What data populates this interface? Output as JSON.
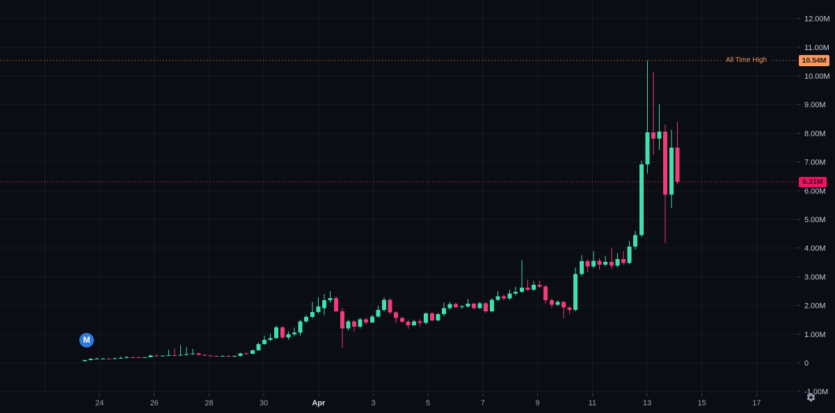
{
  "window": {
    "title": "Token market cap candlestick chart"
  },
  "colors": {
    "background": "#0a0d14",
    "grid": "rgba(160,175,205,0.08)",
    "up": "#3fe0ad",
    "down": "#f23b77",
    "axis_text": "#c4c9d4",
    "axis_text_dim": "#9aa0ac",
    "axis_text_bold": "#dde1e8",
    "tick": "#3a4152",
    "ath_line": "#b06f3f",
    "ath_text": "#f79a5e",
    "ath_badge_bg": "#f89a62",
    "price_line": "#e81d64",
    "price_badge_bg": "#f0135f",
    "logo_bg": "#2e7cd8"
  },
  "marker": {
    "letter": "M"
  },
  "axis_settings_icon": "gear-icon",
  "chart_data": {
    "type": "candlestick",
    "title": "",
    "series_name": "M",
    "unit": "M",
    "ylim": [
      -1,
      12
    ],
    "grid": true,
    "x_axis": {
      "labels": [
        "24",
        "26",
        "28",
        "30",
        "Apr",
        "3",
        "5",
        "7",
        "9",
        "11",
        "13",
        "15",
        "17"
      ],
      "emphasized": [
        "Apr"
      ]
    },
    "y_axis": {
      "labels": [
        "12.00M",
        "11.00M",
        "10.00M",
        "9.00M",
        "8.00M",
        "7.00M",
        "6.00M",
        "5.00M",
        "4.00M",
        "3.00M",
        "2.00M",
        "1.00M",
        "0",
        "-1.00M"
      ],
      "values": [
        12,
        11,
        10,
        9,
        8,
        7,
        6,
        5,
        4,
        3,
        2,
        1,
        0,
        -1
      ]
    },
    "all_time_high": {
      "label": "All Time High",
      "value": "10.54M",
      "price": 10.54
    },
    "last_price": {
      "value": "6.31M",
      "price": 6.31
    },
    "candles_format": [
      "open",
      "high",
      "low",
      "close"
    ],
    "candles": [
      [
        0.06,
        0.11,
        0.05,
        0.1
      ],
      [
        0.1,
        0.16,
        0.09,
        0.14
      ],
      [
        0.14,
        0.18,
        0.12,
        0.15
      ],
      [
        0.15,
        0.17,
        0.13,
        0.15
      ],
      [
        0.15,
        0.16,
        0.12,
        0.13
      ],
      [
        0.13,
        0.17,
        0.12,
        0.16
      ],
      [
        0.16,
        0.22,
        0.15,
        0.17
      ],
      [
        0.17,
        0.24,
        0.16,
        0.2
      ],
      [
        0.2,
        0.22,
        0.18,
        0.19
      ],
      [
        0.19,
        0.21,
        0.17,
        0.18
      ],
      [
        0.18,
        0.21,
        0.17,
        0.2
      ],
      [
        0.2,
        0.29,
        0.19,
        0.26
      ],
      [
        0.26,
        0.28,
        0.23,
        0.24
      ],
      [
        0.24,
        0.26,
        0.22,
        0.25
      ],
      [
        0.25,
        0.45,
        0.24,
        0.27
      ],
      [
        0.27,
        0.5,
        0.25,
        0.26
      ],
      [
        0.26,
        0.62,
        0.25,
        0.28
      ],
      [
        0.28,
        0.55,
        0.26,
        0.3
      ],
      [
        0.3,
        0.48,
        0.28,
        0.33
      ],
      [
        0.33,
        0.35,
        0.26,
        0.28
      ],
      [
        0.28,
        0.3,
        0.24,
        0.25
      ],
      [
        0.25,
        0.27,
        0.23,
        0.24
      ],
      [
        0.24,
        0.26,
        0.22,
        0.23
      ],
      [
        0.23,
        0.26,
        0.22,
        0.24
      ],
      [
        0.24,
        0.25,
        0.21,
        0.22
      ],
      [
        0.22,
        0.26,
        0.21,
        0.24
      ],
      [
        0.24,
        0.35,
        0.22,
        0.33
      ],
      [
        0.33,
        0.36,
        0.29,
        0.31
      ],
      [
        0.31,
        0.46,
        0.3,
        0.44
      ],
      [
        0.44,
        0.72,
        0.42,
        0.66
      ],
      [
        0.66,
        0.95,
        0.63,
        0.8
      ],
      [
        0.8,
        1.02,
        0.76,
        0.86
      ],
      [
        0.86,
        1.3,
        0.84,
        1.24
      ],
      [
        1.24,
        1.27,
        0.82,
        0.89
      ],
      [
        0.89,
        1.1,
        0.8,
        1.0
      ],
      [
        1.0,
        1.22,
        0.92,
        1.06
      ],
      [
        1.06,
        1.5,
        0.95,
        1.45
      ],
      [
        1.45,
        1.68,
        1.4,
        1.6
      ],
      [
        1.6,
        2.12,
        1.55,
        1.77
      ],
      [
        1.77,
        2.28,
        1.72,
        1.96
      ],
      [
        1.9,
        2.4,
        1.66,
        2.18
      ],
      [
        2.18,
        2.5,
        2.1,
        2.26
      ],
      [
        2.26,
        2.32,
        1.76,
        1.8
      ],
      [
        1.8,
        1.92,
        0.52,
        1.2
      ],
      [
        1.2,
        1.5,
        1.12,
        1.44
      ],
      [
        1.44,
        1.48,
        1.08,
        1.26
      ],
      [
        1.26,
        1.56,
        1.2,
        1.52
      ],
      [
        1.52,
        1.58,
        1.34,
        1.41
      ],
      [
        1.41,
        1.68,
        1.38,
        1.62
      ],
      [
        1.62,
        1.99,
        1.58,
        1.84
      ],
      [
        1.84,
        2.28,
        1.78,
        2.2
      ],
      [
        2.2,
        2.24,
        1.7,
        1.76
      ],
      [
        1.76,
        1.8,
        1.38,
        1.56
      ],
      [
        1.56,
        1.62,
        1.4,
        1.43
      ],
      [
        1.43,
        1.5,
        1.19,
        1.31
      ],
      [
        1.31,
        1.5,
        1.28,
        1.45
      ],
      [
        1.45,
        1.52,
        1.28,
        1.4
      ],
      [
        1.4,
        1.76,
        1.34,
        1.72
      ],
      [
        1.72,
        1.78,
        1.44,
        1.48
      ],
      [
        1.48,
        1.74,
        1.45,
        1.7
      ],
      [
        1.7,
        2.1,
        1.62,
        1.9
      ],
      [
        1.9,
        2.12,
        1.85,
        2.05
      ],
      [
        2.05,
        2.1,
        1.9,
        1.94
      ],
      [
        1.94,
        2.02,
        1.88,
        1.96
      ],
      [
        1.96,
        2.22,
        1.92,
        2.06
      ],
      [
        2.06,
        2.1,
        1.86,
        1.91
      ],
      [
        1.91,
        2.12,
        1.88,
        2.08
      ],
      [
        2.08,
        2.12,
        1.74,
        1.8
      ],
      [
        1.8,
        2.26,
        1.76,
        2.2
      ],
      [
        2.2,
        2.5,
        2.16,
        2.32
      ],
      [
        2.32,
        2.38,
        2.18,
        2.25
      ],
      [
        2.25,
        2.55,
        2.2,
        2.42
      ],
      [
        2.42,
        2.65,
        2.36,
        2.48
      ],
      [
        2.48,
        3.58,
        2.44,
        2.62
      ],
      [
        2.62,
        2.9,
        2.5,
        2.55
      ],
      [
        2.55,
        2.85,
        2.5,
        2.72
      ],
      [
        2.72,
        2.86,
        2.6,
        2.66
      ],
      [
        2.66,
        2.72,
        2.05,
        2.18
      ],
      [
        2.18,
        2.24,
        1.9,
        2.03
      ],
      [
        2.03,
        2.18,
        1.98,
        2.12
      ],
      [
        2.12,
        2.16,
        1.55,
        1.93
      ],
      [
        1.93,
        1.98,
        1.7,
        1.85
      ],
      [
        1.85,
        3.32,
        1.8,
        3.1
      ],
      [
        3.1,
        3.75,
        3.02,
        3.54
      ],
      [
        3.54,
        3.6,
        3.15,
        3.36
      ],
      [
        3.36,
        3.9,
        3.3,
        3.56
      ],
      [
        3.56,
        3.64,
        3.25,
        3.42
      ],
      [
        3.42,
        3.72,
        3.36,
        3.52
      ],
      [
        3.52,
        4.0,
        3.28,
        3.38
      ],
      [
        3.38,
        3.82,
        3.32,
        3.62
      ],
      [
        3.62,
        3.9,
        3.42,
        3.48
      ],
      [
        3.48,
        4.25,
        3.44,
        4.05
      ],
      [
        4.05,
        4.6,
        3.95,
        4.45
      ],
      [
        4.45,
        7.05,
        4.38,
        6.92
      ],
      [
        6.92,
        10.54,
        6.6,
        8.03
      ],
      [
        8.03,
        10.15,
        7.25,
        7.82
      ],
      [
        7.82,
        9.02,
        7.42,
        8.06
      ],
      [
        8.06,
        8.3,
        4.18,
        5.86
      ],
      [
        5.86,
        8.12,
        5.4,
        7.5
      ],
      [
        7.5,
        8.4,
        6.22,
        6.31
      ]
    ]
  }
}
